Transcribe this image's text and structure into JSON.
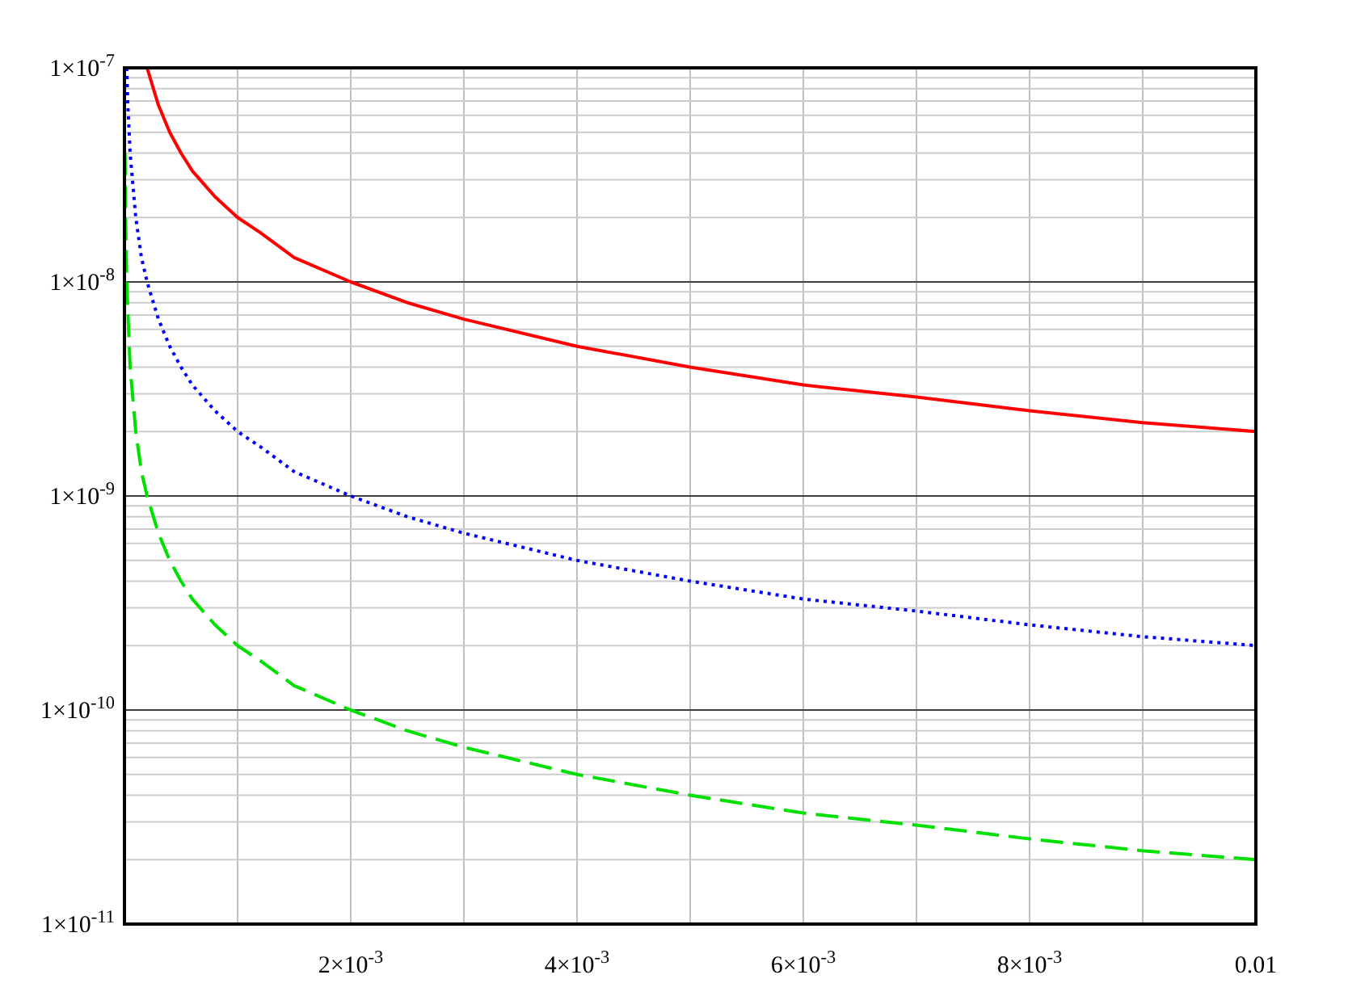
{
  "chart_data": {
    "type": "line",
    "log": "y",
    "grid": true,
    "xlim": [
      0,
      0.01
    ],
    "ylim": [
      1e-11,
      1e-07
    ],
    "xticks": [
      {
        "value": 0.001,
        "label": null
      },
      {
        "value": 0.002,
        "label": "2×10$^{-3}$"
      },
      {
        "value": 0.003,
        "label": null
      },
      {
        "value": 0.004,
        "label": "4×10$^{-3}$"
      },
      {
        "value": 0.005,
        "label": null
      },
      {
        "value": 0.006,
        "label": "6×10$^{-3}$"
      },
      {
        "value": 0.007,
        "label": null
      },
      {
        "value": 0.008,
        "label": "8×10$^{-3}$"
      },
      {
        "value": 0.009,
        "label": null
      },
      {
        "value": 0.01,
        "label": "0.01"
      }
    ],
    "yticks": [
      {
        "value": 1e-11,
        "label": "1×10$^{-11}$"
      },
      {
        "value": 2e-11,
        "label": null
      },
      {
        "value": 3e-11,
        "label": null
      },
      {
        "value": 4e-11,
        "label": null
      },
      {
        "value": 5e-11,
        "label": null
      },
      {
        "value": 6e-11,
        "label": null
      },
      {
        "value": 7e-11,
        "label": null
      },
      {
        "value": 8e-11,
        "label": null
      },
      {
        "value": 9e-11,
        "label": null
      },
      {
        "value": 1e-10,
        "label": "1×10$^{-10}$"
      },
      {
        "value": 2e-10,
        "label": null
      },
      {
        "value": 3e-10,
        "label": null
      },
      {
        "value": 4e-10,
        "label": null
      },
      {
        "value": 5e-10,
        "label": null
      },
      {
        "value": 6e-10,
        "label": null
      },
      {
        "value": 7e-10,
        "label": null
      },
      {
        "value": 8e-10,
        "label": null
      },
      {
        "value": 9e-10,
        "label": null
      },
      {
        "value": 1e-09,
        "label": "1×10$^{-9}$"
      },
      {
        "value": 2e-09,
        "label": null
      },
      {
        "value": 3e-09,
        "label": null
      },
      {
        "value": 4e-09,
        "label": null
      },
      {
        "value": 5e-09,
        "label": null
      },
      {
        "value": 6e-09,
        "label": null
      },
      {
        "value": 7e-09,
        "label": null
      },
      {
        "value": 8e-09,
        "label": null
      },
      {
        "value": 9e-09,
        "label": null
      },
      {
        "value": 1e-08,
        "label": "1×10$^{-8}$"
      },
      {
        "value": 2e-08,
        "label": null
      },
      {
        "value": 3e-08,
        "label": null
      },
      {
        "value": 4e-08,
        "label": null
      },
      {
        "value": 5e-08,
        "label": null
      },
      {
        "value": 6e-08,
        "label": null
      },
      {
        "value": 7e-08,
        "label": null
      },
      {
        "value": 8e-08,
        "label": null
      },
      {
        "value": 9e-08,
        "label": null
      },
      {
        "value": 1e-07,
        "label": "1×10$^{-7}$"
      }
    ],
    "series": [
      {
        "color": "#ff0000",
        "line_style": "solid",
        "x": [
          0.0002,
          0.0003,
          0.0004,
          0.0005,
          0.0006,
          0.0008,
          0.001,
          0.0012,
          0.0015,
          0.002,
          0.0025,
          0.003,
          0.004,
          0.005,
          0.006,
          0.007,
          0.008,
          0.009,
          0.01
        ],
        "values": [
          1e-07,
          6.7e-08,
          5e-08,
          4e-08,
          3.3e-08,
          2.5e-08,
          2e-08,
          1.7e-08,
          1.3e-08,
          1e-08,
          8e-09,
          6.7e-09,
          5e-09,
          4e-09,
          3.3e-09,
          2.9e-09,
          2.5e-09,
          2.2e-09,
          2e-09
        ]
      },
      {
        "color": "#0000ff",
        "line_style": "dotted",
        "x": [
          2e-05,
          3e-05,
          5e-05,
          0.0001,
          0.00015,
          0.0002,
          0.0003,
          0.0004,
          0.0005,
          0.0006,
          0.0008,
          0.001,
          0.0012,
          0.0015,
          0.002,
          0.0025,
          0.003,
          0.004,
          0.005,
          0.006,
          0.007,
          0.008,
          0.009,
          0.01
        ],
        "values": [
          1e-07,
          6.7e-08,
          4e-08,
          2e-08,
          1.3e-08,
          1e-08,
          6.7e-09,
          5e-09,
          4e-09,
          3.3e-09,
          2.5e-09,
          2e-09,
          1.7e-09,
          1.3e-09,
          1e-09,
          8e-10,
          6.7e-10,
          5e-10,
          4e-10,
          3.3e-10,
          2.9e-10,
          2.5e-10,
          2.2e-10,
          2e-10
        ]
      },
      {
        "color": "#00e000",
        "line_style": "dashed",
        "x": [
          5e-06,
          1e-05,
          2e-05,
          5e-05,
          0.0001,
          0.00015,
          0.0002,
          0.0003,
          0.0004,
          0.0005,
          0.0006,
          0.0008,
          0.001,
          0.0012,
          0.0015,
          0.002,
          0.0025,
          0.003,
          0.004,
          0.005,
          0.006,
          0.007,
          0.008,
          0.009,
          0.01
        ],
        "values": [
          4e-08,
          2e-08,
          1e-08,
          4e-09,
          2e-09,
          1.3e-09,
          1e-09,
          6.7e-10,
          5e-10,
          4e-10,
          3.3e-10,
          2.5e-10,
          2e-10,
          1.7e-10,
          1.3e-10,
          1e-10,
          8e-11,
          6.7e-11,
          5e-11,
          4e-11,
          3.3e-11,
          2.9e-11,
          2.5e-11,
          2.2e-11,
          2e-11
        ]
      }
    ]
  }
}
